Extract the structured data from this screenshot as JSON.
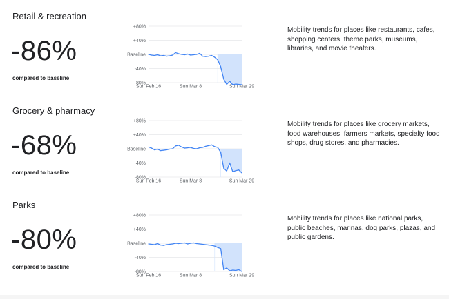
{
  "sections": [
    {
      "category": "Retail & recreation",
      "value": "-86%",
      "compared": "compared to baseline",
      "description": "Mobility trends for places like restaurants, cafes, shopping centers, theme parks, museums, libraries, and movie theaters."
    },
    {
      "category": "Grocery & pharmacy",
      "value": "-68%",
      "compared": "compared to baseline",
      "description": "Mobility trends for places like grocery markets, food warehouses, farmers markets, specialty food shops, drug stores, and pharmacies."
    },
    {
      "category": "Parks",
      "value": "-80%",
      "compared": "compared to baseline",
      "description": "Mobility trends for places like national parks, public beaches, marinas, dog parks, plazas, and public gardens."
    }
  ],
  "colors": {
    "line": "#4285f4",
    "fill": "#d2e3fc",
    "grid": "#dadce0",
    "text": "#202124",
    "tick": "#5f6368"
  },
  "chart_data": [
    {
      "type": "line",
      "x_ticks": [
        "Sun Feb 16",
        "Sun Mar 8",
        "Sun Mar 29"
      ],
      "y_ticks": [
        "+80%",
        "+40%",
        "Baseline",
        "-40%",
        "-80%"
      ],
      "ylim": [
        -80,
        80
      ],
      "shade_from_index": 23,
      "series": [
        {
          "values": [
            0,
            -2,
            -3,
            -1,
            -4,
            -3,
            -5,
            -4,
            -2,
            5,
            2,
            0,
            -1,
            1,
            -2,
            -1,
            0,
            3,
            -5,
            -6,
            -5,
            -3,
            -8,
            -15,
            -35,
            -70,
            -85,
            -76,
            -86,
            -84,
            -85,
            -86
          ]
        }
      ]
    },
    {
      "type": "line",
      "x_ticks": [
        "Sun Feb 16",
        "Sun Mar 8",
        "Sun Mar 29"
      ],
      "y_ticks": [
        "+80%",
        "+40%",
        "Baseline",
        "-40%",
        "-80%"
      ],
      "ylim": [
        -80,
        80
      ],
      "shade_from_index": 24,
      "series": [
        {
          "values": [
            5,
            2,
            -3,
            -1,
            -5,
            -4,
            -3,
            -1,
            0,
            8,
            10,
            5,
            2,
            3,
            4,
            1,
            0,
            3,
            4,
            7,
            9,
            11,
            6,
            4,
            -10,
            -55,
            -63,
            -40,
            -65,
            -62,
            -60,
            -68
          ]
        }
      ]
    },
    {
      "type": "line",
      "x_ticks": [
        "Sun Feb 16",
        "Sun Mar 8",
        "Sun Mar 29"
      ],
      "y_ticks": [
        "+80%",
        "+40%",
        "Baseline",
        "-40%",
        "-80%"
      ],
      "ylim": [
        -80,
        80
      ],
      "shade_from_index": 22,
      "series": [
        {
          "values": [
            -2,
            -3,
            -4,
            -1,
            -5,
            -6,
            -4,
            -3,
            -2,
            0,
            -1,
            0,
            1,
            -2,
            0,
            1,
            -1,
            -2,
            -3,
            -4,
            -5,
            -6,
            -8,
            -12,
            -15,
            -75,
            -70,
            -78,
            -76,
            -77,
            -75,
            -80
          ]
        }
      ]
    }
  ]
}
